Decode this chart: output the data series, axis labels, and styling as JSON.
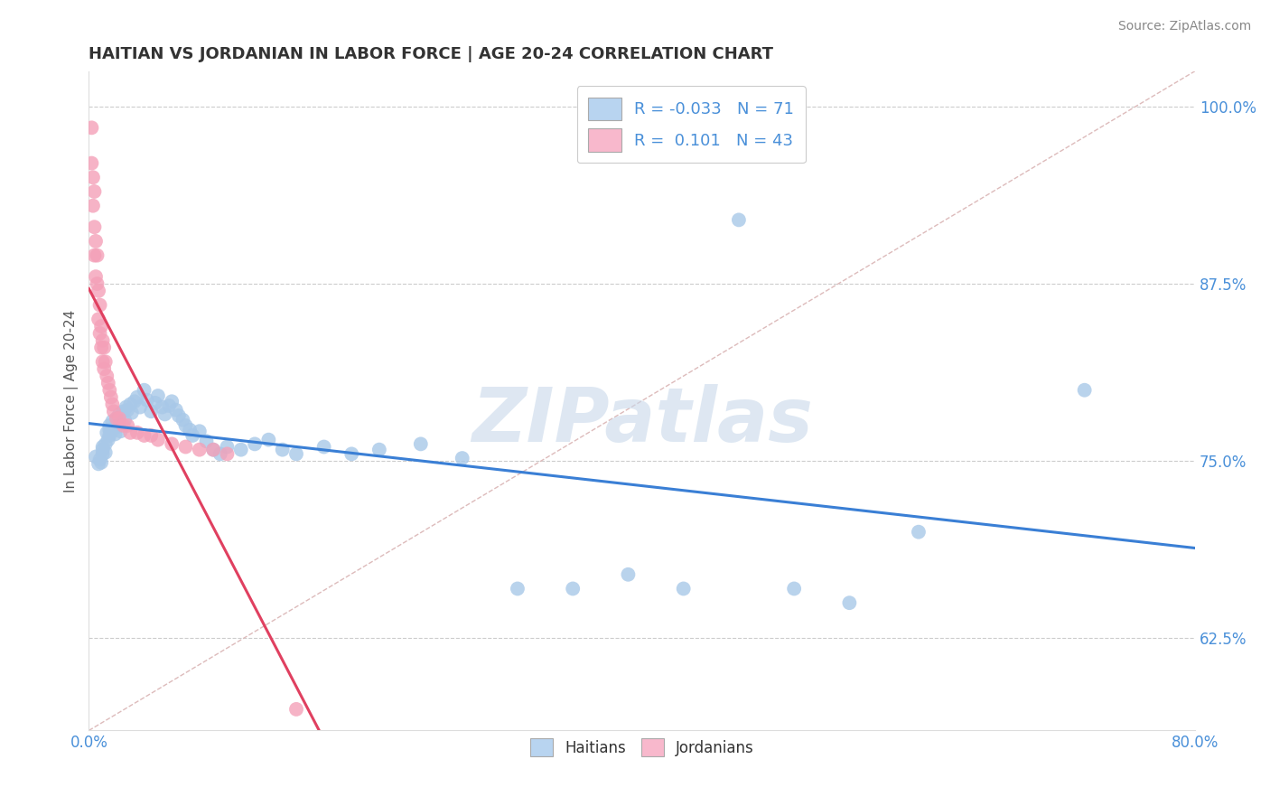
{
  "title": "HAITIAN VS JORDANIAN IN LABOR FORCE | AGE 20-24 CORRELATION CHART",
  "source_text": "Source: ZipAtlas.com",
  "ylabel": "In Labor Force | Age 20-24",
  "xlim": [
    0.0,
    0.8
  ],
  "ylim": [
    0.56,
    1.025
  ],
  "xticks": [
    0.0,
    0.8
  ],
  "xticklabels": [
    "0.0%",
    "80.0%"
  ],
  "yticks": [
    0.625,
    0.75,
    0.875,
    1.0
  ],
  "yticklabels": [
    "62.5%",
    "75.0%",
    "87.5%",
    "100.0%"
  ],
  "haitian_R": -0.033,
  "haitian_N": 71,
  "jordanian_R": 0.101,
  "jordanian_N": 43,
  "haitian_color": "#a8c8e8",
  "jordanian_color": "#f4a0b8",
  "haitian_line_color": "#3a7fd5",
  "jordanian_line_color": "#e04060",
  "legend_haitian_fill": "#b8d4f0",
  "legend_jordanian_fill": "#f8b8cc",
  "background_color": "#ffffff",
  "watermark_text": "ZIPatlas",
  "watermark_color": "#c8d8ea",
  "title_color": "#333333",
  "axis_label_color": "#555555",
  "tick_label_color": "#4a90d9",
  "grid_color": "#cccccc",
  "diag_line_color": "#ddbbbb",
  "haitian_x": [
    0.005,
    0.007,
    0.008,
    0.009,
    0.01,
    0.01,
    0.01,
    0.012,
    0.012,
    0.013,
    0.014,
    0.015,
    0.015,
    0.015,
    0.016,
    0.017,
    0.018,
    0.019,
    0.02,
    0.02,
    0.021,
    0.022,
    0.023,
    0.025,
    0.026,
    0.027,
    0.028,
    0.03,
    0.031,
    0.033,
    0.035,
    0.037,
    0.04,
    0.042,
    0.045,
    0.048,
    0.05,
    0.053,
    0.055,
    0.058,
    0.06,
    0.063,
    0.065,
    0.068,
    0.07,
    0.073,
    0.075,
    0.08,
    0.085,
    0.09,
    0.095,
    0.1,
    0.11,
    0.12,
    0.13,
    0.14,
    0.15,
    0.17,
    0.19,
    0.21,
    0.24,
    0.27,
    0.31,
    0.35,
    0.39,
    0.43,
    0.47,
    0.51,
    0.55,
    0.6,
    0.72
  ],
  "haitian_y": [
    0.753,
    0.748,
    0.751,
    0.749,
    0.755,
    0.76,
    0.758,
    0.762,
    0.756,
    0.77,
    0.765,
    0.768,
    0.772,
    0.775,
    0.771,
    0.778,
    0.773,
    0.769,
    0.78,
    0.774,
    0.776,
    0.783,
    0.771,
    0.785,
    0.779,
    0.788,
    0.786,
    0.79,
    0.784,
    0.792,
    0.795,
    0.788,
    0.8,
    0.793,
    0.785,
    0.791,
    0.796,
    0.788,
    0.783,
    0.789,
    0.792,
    0.786,
    0.782,
    0.779,
    0.775,
    0.772,
    0.768,
    0.771,
    0.764,
    0.758,
    0.755,
    0.76,
    0.758,
    0.762,
    0.765,
    0.758,
    0.755,
    0.76,
    0.755,
    0.758,
    0.762,
    0.752,
    0.66,
    0.66,
    0.67,
    0.66,
    0.92,
    0.66,
    0.65,
    0.7,
    0.8
  ],
  "jordanian_x": [
    0.002,
    0.002,
    0.003,
    0.003,
    0.004,
    0.004,
    0.004,
    0.005,
    0.005,
    0.006,
    0.006,
    0.007,
    0.007,
    0.008,
    0.008,
    0.009,
    0.009,
    0.01,
    0.01,
    0.011,
    0.011,
    0.012,
    0.013,
    0.014,
    0.015,
    0.016,
    0.017,
    0.018,
    0.02,
    0.022,
    0.025,
    0.028,
    0.03,
    0.035,
    0.04,
    0.045,
    0.05,
    0.06,
    0.07,
    0.08,
    0.09,
    0.1,
    0.15
  ],
  "jordanian_y": [
    0.985,
    0.96,
    0.95,
    0.93,
    0.94,
    0.915,
    0.895,
    0.905,
    0.88,
    0.895,
    0.875,
    0.87,
    0.85,
    0.86,
    0.84,
    0.845,
    0.83,
    0.835,
    0.82,
    0.83,
    0.815,
    0.82,
    0.81,
    0.805,
    0.8,
    0.795,
    0.79,
    0.785,
    0.78,
    0.78,
    0.775,
    0.775,
    0.77,
    0.77,
    0.768,
    0.768,
    0.765,
    0.762,
    0.76,
    0.758,
    0.758,
    0.755,
    0.575
  ]
}
